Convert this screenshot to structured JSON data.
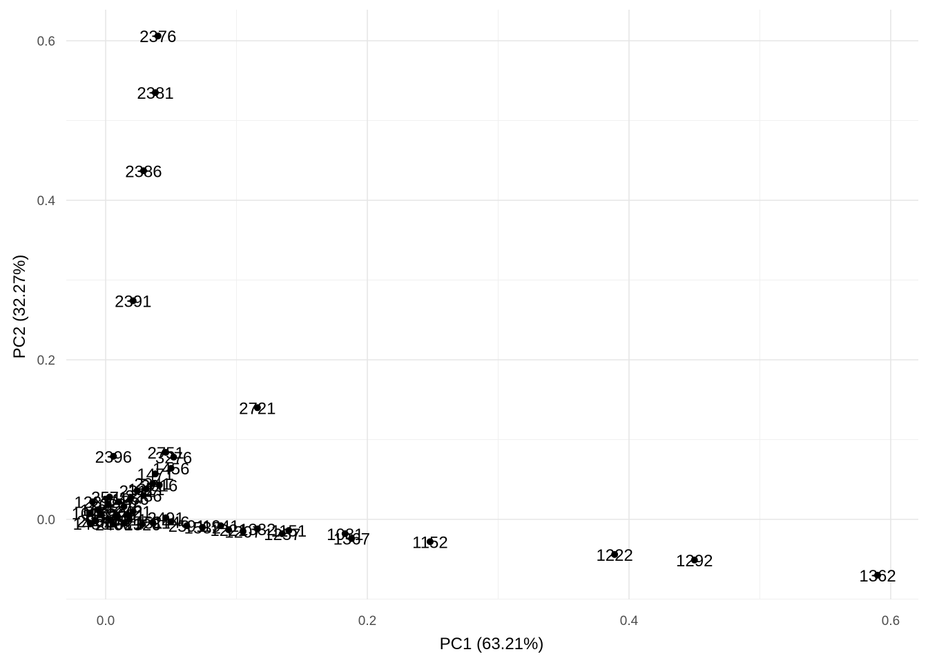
{
  "chart_data": {
    "type": "scatter",
    "xlabel": "PC1 (63.21%)",
    "ylabel": "PC2 (32.27%)",
    "xlim": [
      -0.03,
      0.61
    ],
    "ylim": [
      -0.1,
      0.64
    ],
    "xticks": [
      0.0,
      0.2,
      0.4,
      0.6
    ],
    "xtick_labels": [
      "0.0",
      "0.2",
      "0.4",
      "0.6"
    ],
    "yticks": [
      0.0,
      0.2,
      0.4,
      0.6
    ],
    "ytick_labels": [
      "0.0",
      "0.2",
      "0.4",
      "0.6"
    ],
    "grid": true,
    "point_color": "#000000",
    "label_color": "#000000",
    "points": [
      {
        "label": "2376",
        "x": 0.04,
        "y": 0.606
      },
      {
        "label": "2381",
        "x": 0.038,
        "y": 0.535
      },
      {
        "label": "2386",
        "x": 0.029,
        "y": 0.437
      },
      {
        "label": "2391",
        "x": 0.021,
        "y": 0.274
      },
      {
        "label": "2721",
        "x": 0.116,
        "y": 0.14
      },
      {
        "label": "2396",
        "x": 0.006,
        "y": 0.079
      },
      {
        "label": "2751",
        "x": 0.046,
        "y": 0.084
      },
      {
        "label": "3276",
        "x": 0.052,
        "y": 0.078
      },
      {
        "label": "1456",
        "x": 0.05,
        "y": 0.064
      },
      {
        "label": "1471",
        "x": 0.038,
        "y": 0.057
      },
      {
        "label": "2341",
        "x": 0.036,
        "y": 0.045
      },
      {
        "label": "2016",
        "x": 0.041,
        "y": 0.043
      },
      {
        "label": "1221",
        "x": 0.031,
        "y": 0.038
      },
      {
        "label": "2311",
        "x": 0.024,
        "y": 0.036
      },
      {
        "label": "2236",
        "x": 0.029,
        "y": 0.03
      },
      {
        "label": "1256",
        "x": 0.019,
        "y": 0.026
      },
      {
        "label": "1216",
        "x": 0.01,
        "y": 0.022
      },
      {
        "label": "2571",
        "x": 0.003,
        "y": 0.028
      },
      {
        "label": "1276",
        "x": 0.014,
        "y": 0.016
      },
      {
        "label": "2026",
        "x": 0.002,
        "y": 0.019
      },
      {
        "label": "1231",
        "x": -0.01,
        "y": 0.022
      },
      {
        "label": "1126",
        "x": -0.006,
        "y": 0.012
      },
      {
        "label": "2421",
        "x": 0.021,
        "y": 0.01
      },
      {
        "label": "2251",
        "x": 0.016,
        "y": 0.006
      },
      {
        "label": "1281",
        "x": 0.009,
        "y": 0.004
      },
      {
        "label": "1441",
        "x": -0.004,
        "y": 0.006
      },
      {
        "label": "1016",
        "x": -0.012,
        "y": 0.008
      },
      {
        "label": "2011",
        "x": 0.018,
        "y": 0.0
      },
      {
        "label": "1461",
        "x": 0.004,
        "y": -0.001
      },
      {
        "label": "2086",
        "x": -0.008,
        "y": -0.002
      },
      {
        "label": "2491",
        "x": 0.046,
        "y": 0.002
      },
      {
        "label": "1511",
        "x": 0.036,
        "y": -0.004
      },
      {
        "label": "2446",
        "x": 0.05,
        "y": -0.003
      },
      {
        "label": "1326",
        "x": 0.028,
        "y": -0.006
      },
      {
        "label": "1021",
        "x": 0.014,
        "y": -0.005
      },
      {
        "label": "2466",
        "x": 0.006,
        "y": -0.006
      },
      {
        "label": "1486",
        "x": -0.011,
        "y": -0.005
      },
      {
        "label": "2591",
        "x": 0.062,
        "y": -0.008
      },
      {
        "label": "1532",
        "x": 0.074,
        "y": -0.01
      },
      {
        "label": "1941",
        "x": 0.088,
        "y": -0.008
      },
      {
        "label": "1221",
        "x": 0.094,
        "y": -0.013
      },
      {
        "label": "1207",
        "x": 0.105,
        "y": -0.015
      },
      {
        "label": "1332",
        "x": 0.116,
        "y": -0.012
      },
      {
        "label": "1151",
        "x": 0.14,
        "y": -0.014
      },
      {
        "label": "1257",
        "x": 0.135,
        "y": -0.018
      },
      {
        "label": "1081",
        "x": 0.183,
        "y": -0.018
      },
      {
        "label": "1367",
        "x": 0.188,
        "y": -0.024
      },
      {
        "label": "1152",
        "x": 0.248,
        "y": -0.028
      },
      {
        "label": "1222",
        "x": 0.389,
        "y": -0.044
      },
      {
        "label": "1292",
        "x": 0.45,
        "y": -0.051
      },
      {
        "label": "1362",
        "x": 0.59,
        "y": -0.07
      }
    ]
  }
}
